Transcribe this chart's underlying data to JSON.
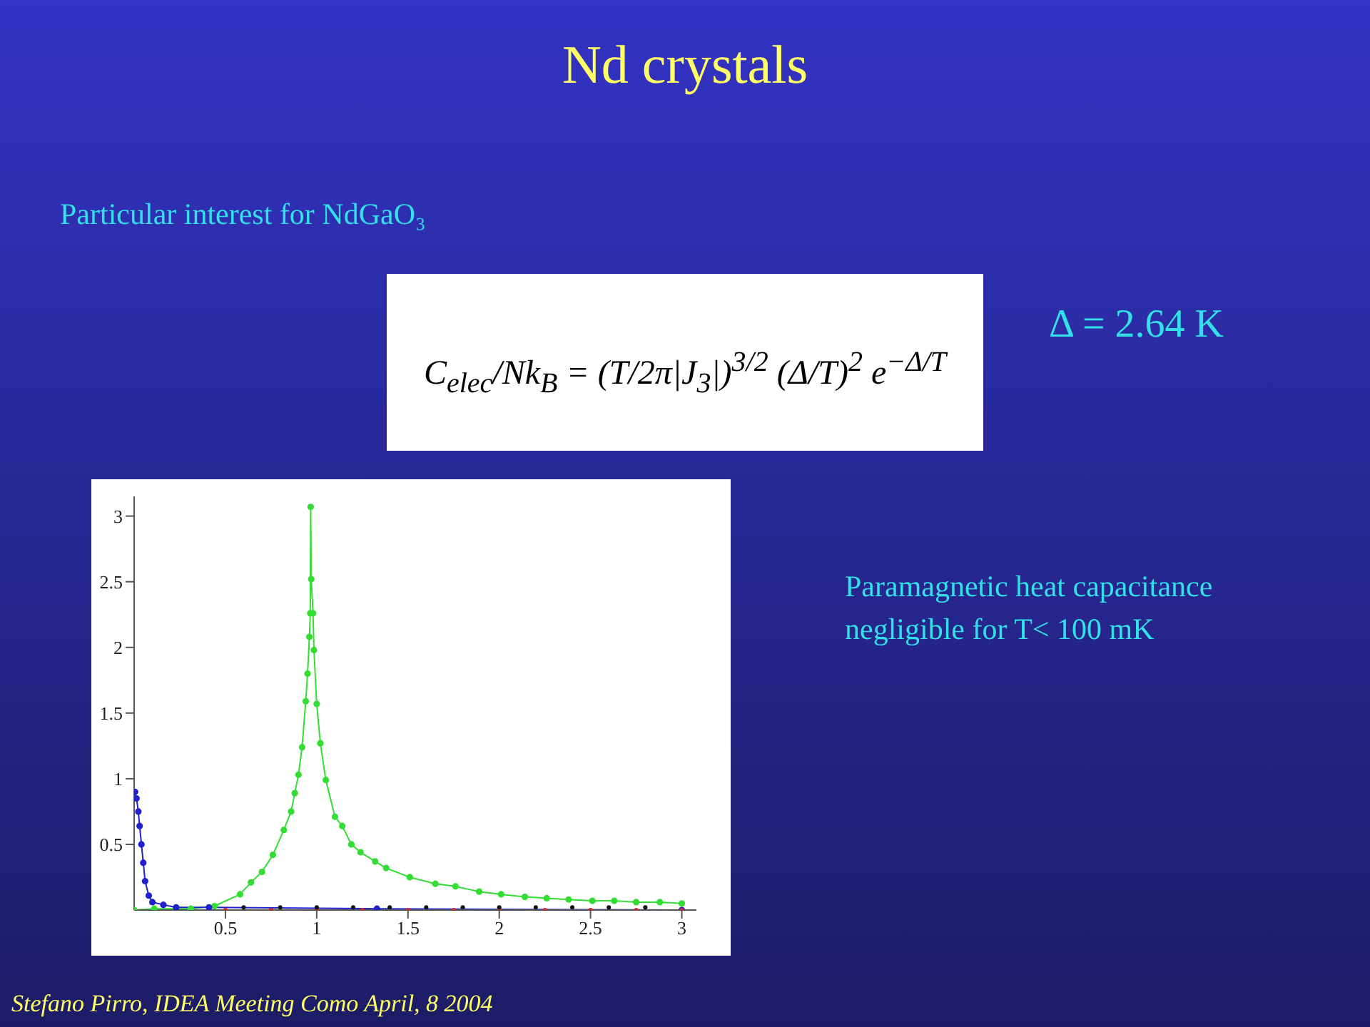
{
  "chart_data": {
    "type": "line",
    "title": "Nd crystals",
    "subtitle": "Particular interest for NdGaO₃",
    "annotations": [
      "C$_{elec}$/Nk$_{B}$ = (T/2π|J$_{3}$|)$^{3/2}$ (Δ/T)$^{2}$ e$^{−Δ/T}$",
      "Δ = 2.64 K",
      "Paramagnetic heat capacitance negligible for T< 100 mK",
      "Stefano Pirro, IDEA Meeting Como April, 8 2004"
    ],
    "xlim": [
      0,
      3.08
    ],
    "ylim": [
      0,
      3.15
    ],
    "xticks": [
      0.5,
      1,
      1.5,
      2,
      2.5,
      3
    ],
    "yticks": [
      0.5,
      1,
      1.5,
      2,
      2.5,
      3
    ],
    "grid": false,
    "legend": false,
    "marker": "circle",
    "series": [
      {
        "color": "#33dd33",
        "x": [
          0,
          0.11,
          0.31,
          0.44,
          0.58,
          0.64,
          0.7,
          0.76,
          0.82,
          0.86,
          0.88,
          0.9,
          0.92,
          0.94,
          0.95,
          0.96,
          0.965,
          0.967,
          0.97,
          0.98,
          0.985,
          1.0,
          1.02,
          1.05,
          1.1,
          1.14,
          1.19,
          1.24,
          1.32,
          1.38,
          1.51,
          1.65,
          1.76,
          1.89,
          2.01,
          2.14,
          2.26,
          2.38,
          2.51,
          2.63,
          2.75,
          2.88,
          3.0
        ],
        "values": [
          0,
          0.01,
          0.01,
          0.03,
          0.12,
          0.21,
          0.29,
          0.42,
          0.61,
          0.75,
          0.89,
          1.03,
          1.24,
          1.59,
          1.8,
          2.08,
          2.26,
          3.07,
          2.52,
          2.26,
          1.98,
          1.57,
          1.27,
          0.99,
          0.71,
          0.64,
          0.5,
          0.44,
          0.37,
          0.32,
          0.25,
          0.2,
          0.18,
          0.14,
          0.12,
          0.1,
          0.09,
          0.08,
          0.07,
          0.07,
          0.06,
          0.06,
          0.05
        ]
      },
      {
        "color": "#2222cc",
        "x": [
          0.005,
          0.013,
          0.023,
          0.03,
          0.04,
          0.05,
          0.06,
          0.08,
          0.1,
          0.16,
          0.23,
          0.41,
          1.33,
          3.0
        ],
        "values": [
          0.9,
          0.85,
          0.75,
          0.64,
          0.5,
          0.36,
          0.22,
          0.11,
          0.06,
          0.04,
          0.02,
          0.02,
          0.01,
          0
        ]
      },
      {
        "type": "scatter",
        "color": "#dd2222",
        "x": [
          0.5,
          0.75,
          1.0,
          1.25,
          1.5,
          1.75,
          2.0,
          2.25,
          2.5,
          2.75,
          3.0
        ],
        "values": [
          0,
          0,
          0,
          0,
          0,
          0,
          0,
          0,
          0,
          0,
          0
        ]
      },
      {
        "type": "scatter",
        "color": "#111111",
        "x": [
          0.6,
          0.8,
          1.0,
          1.2,
          1.4,
          1.6,
          1.8,
          2.0,
          2.2,
          2.4,
          2.6,
          2.8
        ],
        "values": [
          0.02,
          0.02,
          0.02,
          0.02,
          0.02,
          0.02,
          0.02,
          0.02,
          0.02,
          0.02,
          0.02,
          0.02
        ]
      }
    ]
  }
}
